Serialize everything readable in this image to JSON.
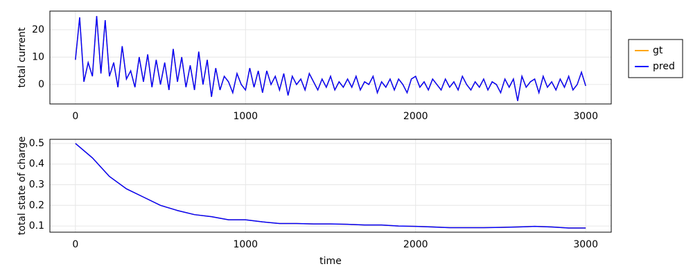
{
  "chart_data": [
    {
      "type": "line",
      "ylabel": "total current",
      "xlim": [
        -150,
        3150
      ],
      "ylim": [
        -7.1,
        26.8
      ],
      "xticks": [
        0,
        1000,
        2000,
        3000
      ],
      "yticks": [
        0,
        10,
        20
      ],
      "grid": true,
      "legend": "right",
      "x": [
        0,
        25,
        50,
        75,
        100,
        125,
        150,
        175,
        200,
        225,
        250,
        275,
        300,
        325,
        350,
        375,
        400,
        425,
        450,
        475,
        500,
        525,
        550,
        575,
        600,
        625,
        650,
        675,
        700,
        725,
        750,
        775,
        800,
        825,
        850,
        875,
        900,
        925,
        950,
        975,
        1000,
        1025,
        1050,
        1075,
        1100,
        1125,
        1150,
        1175,
        1200,
        1225,
        1250,
        1275,
        1300,
        1325,
        1350,
        1375,
        1400,
        1425,
        1450,
        1475,
        1500,
        1525,
        1550,
        1575,
        1600,
        1625,
        1650,
        1675,
        1700,
        1725,
        1750,
        1775,
        1800,
        1825,
        1850,
        1875,
        1900,
        1925,
        1950,
        1975,
        2000,
        2025,
        2050,
        2075,
        2100,
        2125,
        2150,
        2175,
        2200,
        2225,
        2250,
        2275,
        2300,
        2325,
        2350,
        2375,
        2400,
        2425,
        2450,
        2475,
        2500,
        2525,
        2550,
        2575,
        2600,
        2625,
        2650,
        2675,
        2700,
        2725,
        2750,
        2775,
        2800,
        2825,
        2850,
        2875,
        2900,
        2925,
        2950,
        2975,
        3000
      ],
      "series": [
        {
          "name": "gt",
          "color": "#ffa500",
          "values": [
            9,
            24.5,
            1,
            8,
            3,
            25,
            4,
            23.5,
            3,
            8,
            -1,
            14,
            2,
            5,
            -1,
            10,
            1,
            11,
            -1,
            9,
            0,
            8,
            -2,
            13,
            1,
            10,
            -1,
            7,
            -2,
            12,
            0,
            9,
            -4.5,
            6,
            -2,
            3,
            1,
            -3,
            4,
            0,
            -2,
            6,
            -1,
            5,
            -3,
            5,
            0,
            3,
            -2,
            4,
            -4,
            3,
            0,
            2,
            -2,
            4,
            1,
            -2,
            2,
            -1,
            3,
            -2,
            1,
            -1,
            2,
            -1,
            3,
            -2,
            1,
            0,
            3,
            -3,
            1,
            -1,
            2,
            -2,
            2,
            0,
            -3,
            2,
            3,
            -1,
            1,
            -2,
            2,
            0,
            -2,
            2,
            -1,
            1,
            -2,
            3,
            0,
            -2,
            1,
            -1,
            2,
            -2,
            1,
            0,
            -3,
            2,
            -1,
            2,
            -6,
            3,
            -1,
            1,
            2,
            -3,
            3,
            -1,
            1,
            -2,
            2,
            -1,
            3,
            -2,
            0,
            4.5,
            -0.5
          ]
        },
        {
          "name": "pred",
          "color": "#0000ff",
          "values": [
            9,
            24.5,
            1,
            8,
            3,
            25,
            4,
            23.5,
            3,
            8,
            -1,
            14,
            2,
            5,
            -1,
            10,
            1,
            11,
            -1,
            9,
            0,
            8,
            -2,
            13,
            1,
            10,
            -1,
            7,
            -2,
            12,
            0,
            9,
            -4.5,
            6,
            -2,
            3,
            1,
            -3,
            4,
            0,
            -2,
            6,
            -1,
            5,
            -3,
            5,
            0,
            3,
            -2,
            4,
            -4,
            3,
            0,
            2,
            -2,
            4,
            1,
            -2,
            2,
            -1,
            3,
            -2,
            1,
            -1,
            2,
            -1,
            3,
            -2,
            1,
            0,
            3,
            -3,
            1,
            -1,
            2,
            -2,
            2,
            0,
            -3,
            2,
            3,
            -1,
            1,
            -2,
            2,
            0,
            -2,
            2,
            -1,
            1,
            -2,
            3,
            0,
            -2,
            1,
            -1,
            2,
            -2,
            1,
            0,
            -3,
            2,
            -1,
            2,
            -6,
            3,
            -1,
            1,
            2,
            -3,
            3,
            -1,
            1,
            -2,
            2,
            -1,
            3,
            -2,
            0,
            4.5,
            -0.5
          ]
        }
      ]
    },
    {
      "type": "line",
      "xlabel": "time",
      "ylabel": "total state of charge",
      "xlim": [
        -150,
        3150
      ],
      "ylim": [
        0.07,
        0.52
      ],
      "xticks": [
        0,
        1000,
        2000,
        3000
      ],
      "yticks": [
        0.1,
        0.2,
        0.3,
        0.4,
        0.5
      ],
      "grid": true,
      "x": [
        0,
        100,
        200,
        300,
        400,
        500,
        600,
        700,
        800,
        900,
        1000,
        1100,
        1200,
        1300,
        1400,
        1500,
        1600,
        1700,
        1800,
        1900,
        2000,
        2100,
        2200,
        2300,
        2400,
        2500,
        2600,
        2700,
        2800,
        2900,
        3000
      ],
      "series": [
        {
          "color": "#ffa500",
          "values": [
            0.5,
            0.43,
            0.34,
            0.28,
            0.24,
            0.2,
            0.175,
            0.155,
            0.145,
            0.13,
            0.13,
            0.12,
            0.112,
            0.112,
            0.11,
            0.11,
            0.108,
            0.105,
            0.105,
            0.1,
            0.098,
            0.095,
            0.092,
            0.092,
            0.092,
            0.093,
            0.095,
            0.098,
            0.095,
            0.09,
            0.09
          ]
        },
        {
          "color": "#0000ff",
          "values": [
            0.5,
            0.43,
            0.34,
            0.28,
            0.24,
            0.2,
            0.175,
            0.155,
            0.145,
            0.13,
            0.13,
            0.12,
            0.112,
            0.112,
            0.11,
            0.11,
            0.108,
            0.105,
            0.105,
            0.1,
            0.098,
            0.095,
            0.092,
            0.092,
            0.092,
            0.093,
            0.095,
            0.098,
            0.095,
            0.09,
            0.09
          ]
        }
      ]
    }
  ]
}
